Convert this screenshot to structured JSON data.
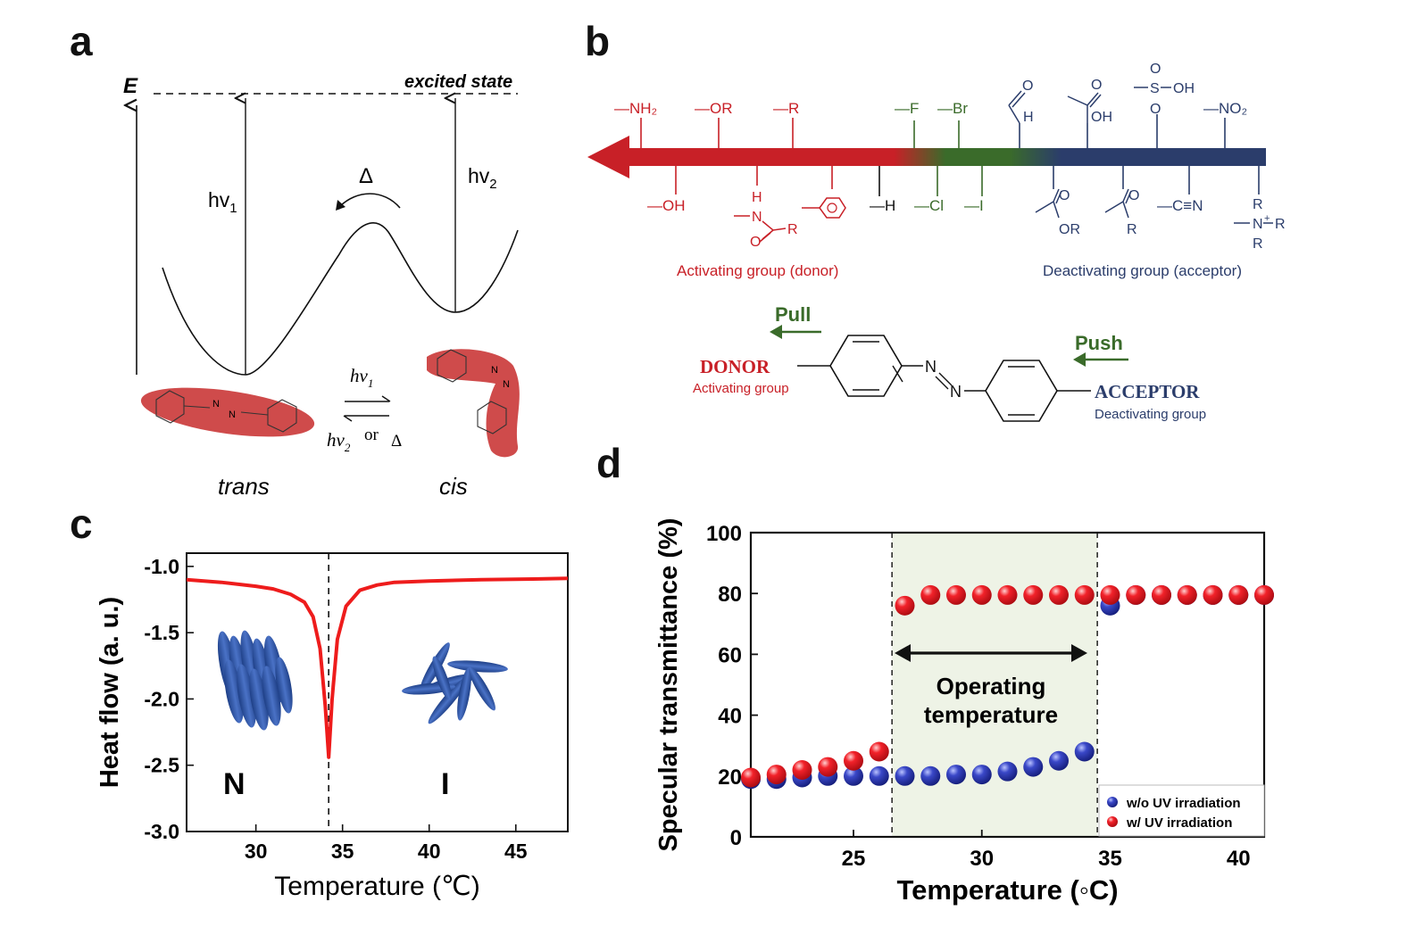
{
  "panels": {
    "a": "a",
    "b": "b",
    "c": "c",
    "d": "d"
  },
  "panel_a": {
    "energy_label": "E",
    "excited_state": "excited state",
    "hv1": "hv",
    "hv1_sub": "1",
    "hv2": "hv",
    "hv2_sub": "2",
    "delta": "Δ",
    "eq_top": "hv",
    "eq_top_sub": "1",
    "eq_bottom": "hv",
    "eq_bottom_sub": "2",
    "eq_or": "or",
    "eq_delta": "Δ",
    "trans": "trans",
    "cis": "cis",
    "mol_N1": "N",
    "mol_N2": "N"
  },
  "panel_b": {
    "top_donor": [
      "—NH₂",
      "—OR",
      "—R"
    ],
    "top_halogen": [
      "—F",
      "—Br"
    ],
    "bottom_donor": [
      "—OH",
      "H",
      "N",
      "O",
      "R"
    ],
    "bottom_mid": [
      "—H",
      "—Cl",
      "—I"
    ],
    "top_acceptor_aldehyde": [
      "O",
      "H"
    ],
    "top_acceptor_acid": [
      "O",
      "OH"
    ],
    "top_acceptor_sulfonic": [
      "O",
      "S",
      "OH",
      "O"
    ],
    "top_acceptor_nitro": "—NO₂",
    "bottom_acceptor_ester": [
      "O",
      "OR"
    ],
    "bottom_acceptor_ketone": [
      "O",
      "R"
    ],
    "bottom_acceptor_nitrile": "—C≡N",
    "bottom_acceptor_ammonium": [
      "R",
      "N",
      "R",
      "R",
      "+"
    ],
    "activating_caption": "Activating group (donor)",
    "deactivating_caption": "Deactivating group (acceptor)",
    "pull": "Pull",
    "push": "Push",
    "donor": "DONOR",
    "donor_sub": "Activating group",
    "acceptor": "ACCEPTOR",
    "acceptor_sub": "Deactivating group",
    "azo_N1": "N",
    "azo_N2": "N",
    "colors": {
      "donor": "#c82027",
      "neutral": "#3a6b2a",
      "acceptor": "#2b3d6b"
    }
  },
  "panel_c": {
    "phase_N": "N",
    "phase_I": "I",
    "colors": {
      "curve": "#ee1c1c",
      "mesogen": "#2f57a8"
    }
  },
  "panel_d": {
    "box_text_1": "Operating",
    "box_text_2": "temperature",
    "legend": [
      "w/o UV irradiation",
      "w/ UV irradiation"
    ],
    "colors": {
      "without_uv": "#1f2a9a",
      "with_uv": "#e8101a",
      "box": "#eef3e6"
    }
  },
  "chart_data": [
    {
      "type": "line",
      "panel": "c",
      "xlabel": "Temperature (℃)",
      "ylabel": "Heat flow (a. u.)",
      "xlim": [
        26,
        48
      ],
      "ylim": [
        -3.0,
        -0.9
      ],
      "xticks": [
        "30",
        "35",
        "40",
        "45"
      ],
      "xtick_values": [
        30,
        35,
        40,
        45
      ],
      "yticks": [
        "-1.0",
        "-1.5",
        "-2.0",
        "-2.5",
        "-3.0"
      ],
      "ytick_values": [
        -1.0,
        -1.5,
        -2.0,
        -2.5,
        -3.0
      ],
      "dashed_vline": 34.2,
      "series": [
        {
          "x": [
            26,
            28,
            30,
            31,
            32,
            32.8,
            33.3,
            33.7,
            34.0,
            34.2,
            34.4,
            34.7,
            35.2,
            36,
            37,
            38,
            40,
            43,
            46,
            48
          ],
          "values": [
            -1.1,
            -1.12,
            -1.15,
            -1.17,
            -1.21,
            -1.27,
            -1.38,
            -1.62,
            -2.05,
            -2.44,
            -2.0,
            -1.55,
            -1.3,
            -1.18,
            -1.14,
            -1.12,
            -1.11,
            -1.1,
            -1.095,
            -1.09
          ]
        }
      ]
    },
    {
      "type": "scatter",
      "panel": "d",
      "xlabel": "Temperature (◦C)",
      "ylabel": "Specular transmittance (%)",
      "xlim": [
        21,
        41
      ],
      "ylim": [
        0,
        100
      ],
      "xticks": [
        "25",
        "30",
        "35",
        "40"
      ],
      "xtick_values": [
        25,
        30,
        35,
        40
      ],
      "yticks": [
        "0",
        "20",
        "40",
        "60",
        "80",
        "100"
      ],
      "ytick_values": [
        0,
        20,
        40,
        60,
        80,
        100
      ],
      "operating_range": [
        26.5,
        34.5
      ],
      "series": [
        {
          "name": "w/o UV irradiation",
          "x": [
            21,
            22,
            23,
            24,
            25,
            26,
            27,
            28,
            29,
            30,
            31,
            32,
            33,
            34,
            35,
            36,
            37,
            38,
            39,
            40,
            41
          ],
          "values": [
            19,
            19,
            19.5,
            20,
            20,
            20,
            20,
            20,
            20.5,
            20.5,
            21.5,
            23,
            25,
            28,
            76,
            79.5,
            79.5,
            79.5,
            79.5,
            79.5,
            79.5
          ]
        },
        {
          "name": "w/ UV irradiation",
          "x": [
            21,
            22,
            23,
            24,
            25,
            26,
            27,
            28,
            29,
            30,
            31,
            32,
            33,
            34,
            35,
            36,
            37,
            38,
            39,
            40,
            41
          ],
          "values": [
            19.5,
            20.5,
            22,
            23,
            25,
            28,
            76,
            79.5,
            79.5,
            79.5,
            79.5,
            79.5,
            79.5,
            79.5,
            79.5,
            79.5,
            79.5,
            79.5,
            79.5,
            79.5,
            79.5
          ]
        }
      ]
    }
  ]
}
